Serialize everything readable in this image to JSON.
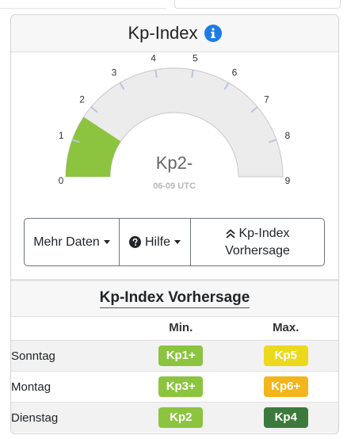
{
  "card": {
    "title": "Kp-Index"
  },
  "gauge": {
    "value_label": "Kp2-",
    "time_label": "06-09 UTC",
    "min": 0,
    "max": 9,
    "current_value": 1.67,
    "ticks": [
      "0",
      "1",
      "2",
      "3",
      "4",
      "5",
      "6",
      "7",
      "8",
      "9"
    ],
    "fill_color": "#8cc43f",
    "track_color": "#ececec"
  },
  "buttons": {
    "more_data": "Mehr Daten",
    "help": "Hilfe",
    "forecast_line1": "Kp-Index",
    "forecast_line2": "Vorhersage"
  },
  "forecast": {
    "title": "Kp-Index Vorhersage",
    "col_min": "Min.",
    "col_max": "Max.",
    "rows": [
      {
        "day": "Sonntag",
        "min": "Kp1+",
        "min_color": "#8cc43f",
        "max": "Kp5",
        "max_color": "#ecd91b"
      },
      {
        "day": "Montag",
        "min": "Kp3+",
        "min_color": "#8cc43f",
        "max": "Kp6+",
        "max_color": "#f2b51c"
      },
      {
        "day": "Dienstag",
        "min": "Kp2",
        "min_color": "#8cc43f",
        "max": "Kp4",
        "max_color": "#3c7a3c"
      }
    ]
  }
}
